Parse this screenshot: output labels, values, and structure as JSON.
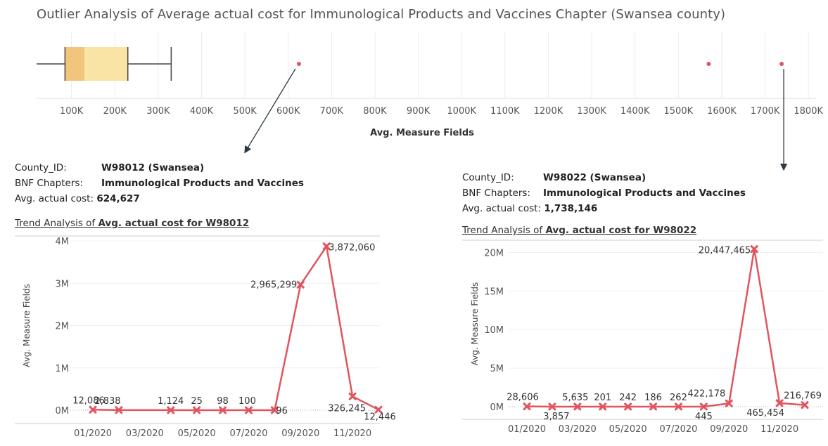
{
  "title": "Outlier Analysis of Average actual cost for Immunological Products and Vaccines Chapter (Swansea county)",
  "colors": {
    "line": "#e0555f",
    "box_lower": "#f2c57c",
    "box_upper": "#f9e3a5",
    "outlier": "#e0555f"
  },
  "chart_data": [
    {
      "type": "box",
      "xlabel": "Avg. Measure Fields",
      "xlim": [
        0,
        1850000
      ],
      "ticks": [
        100000,
        200000,
        300000,
        400000,
        500000,
        600000,
        700000,
        800000,
        900000,
        1000000,
        1100000,
        1200000,
        1300000,
        1400000,
        1500000,
        1600000,
        1700000,
        1800000
      ],
      "tick_labels": [
        "100K",
        "200K",
        "300K",
        "400K",
        "500K",
        "600K",
        "700K",
        "800K",
        "900K",
        "1000K",
        "1100K",
        "1200K",
        "1300K",
        "1400K",
        "1500K",
        "1600K",
        "1700K",
        "1800K"
      ],
      "whisker_low": 0,
      "q1": 85000,
      "median": 130000,
      "q3": 230000,
      "whisker_high": 330000,
      "outliers": [
        624627,
        1570000,
        1738146
      ]
    },
    {
      "type": "line",
      "ylabel": "Avg. Measure Fields",
      "x": [
        "01/2020",
        "02/2020",
        "03/2020",
        "04/2020",
        "05/2020",
        "06/2020",
        "07/2020",
        "08/2020",
        "09/2020",
        "10/2020",
        "11/2020",
        "12/2020"
      ],
      "x_tick_labels": [
        "01/2020",
        "03/2020",
        "05/2020",
        "07/2020",
        "09/2020",
        "11/2020"
      ],
      "values": [
        12086,
        2838,
        null,
        1124,
        25,
        98,
        100,
        96,
        2965299,
        3872060,
        326245,
        12446
      ],
      "point_labels": [
        "12,086",
        "2,838",
        "",
        "1,124",
        "25",
        "98",
        "100",
        "96",
        "2,965,299",
        "3,872,060",
        "326,245",
        "12,446"
      ],
      "ylim": [
        0,
        4000000
      ],
      "y_ticks": [
        0,
        1000000,
        2000000,
        3000000,
        4000000
      ],
      "y_tick_labels": [
        "0M",
        "1M",
        "2M",
        "3M",
        "4M"
      ]
    },
    {
      "type": "line",
      "ylabel": "Avg. Measure Fields",
      "x": [
        "01/2020",
        "02/2020",
        "03/2020",
        "04/2020",
        "05/2020",
        "06/2020",
        "07/2020",
        "08/2020",
        "09/2020",
        "10/2020",
        "11/2020",
        "12/2020"
      ],
      "x_tick_labels": [
        "01/2020",
        "03/2020",
        "05/2020",
        "07/2020",
        "09/2020",
        "11/2020"
      ],
      "values": [
        28606,
        3857,
        5635,
        201,
        242,
        186,
        262,
        445,
        422178,
        20447465,
        465454,
        216769
      ],
      "point_labels": [
        "28,606",
        "3,857",
        "5,635",
        "201",
        "242",
        "186",
        "262",
        "445",
        "422,178",
        "20,447,465",
        "465,454",
        "216,769"
      ],
      "ylim": [
        0,
        21500000
      ],
      "y_ticks": [
        0,
        5000000,
        10000000,
        15000000,
        20000000
      ],
      "y_tick_labels": [
        "0M",
        "5M",
        "10M",
        "15M",
        "20M"
      ]
    }
  ],
  "left_info": {
    "county_label": "County_ID:",
    "county_value": "W98012 (Swansea)",
    "bnf_label": "BNF Chapters:",
    "bnf_value": "Immunological Products and Vaccines",
    "cost_label": "Avg. actual cost:",
    "cost_value": "624,627",
    "trend_prefix": "Trend Analysis of ",
    "trend_bold": "Avg. actual cost for W98012"
  },
  "right_info": {
    "county_label": "County_ID:",
    "county_value": "W98022 (Swansea)",
    "bnf_label": "BNF Chapters:",
    "bnf_value": "Immunological Products and Vaccines",
    "cost_label": "Avg. actual cost:",
    "cost_value": "1,738,146",
    "trend_prefix": "Trend Analysis of ",
    "trend_bold": "Avg. actual cost for W98022"
  }
}
